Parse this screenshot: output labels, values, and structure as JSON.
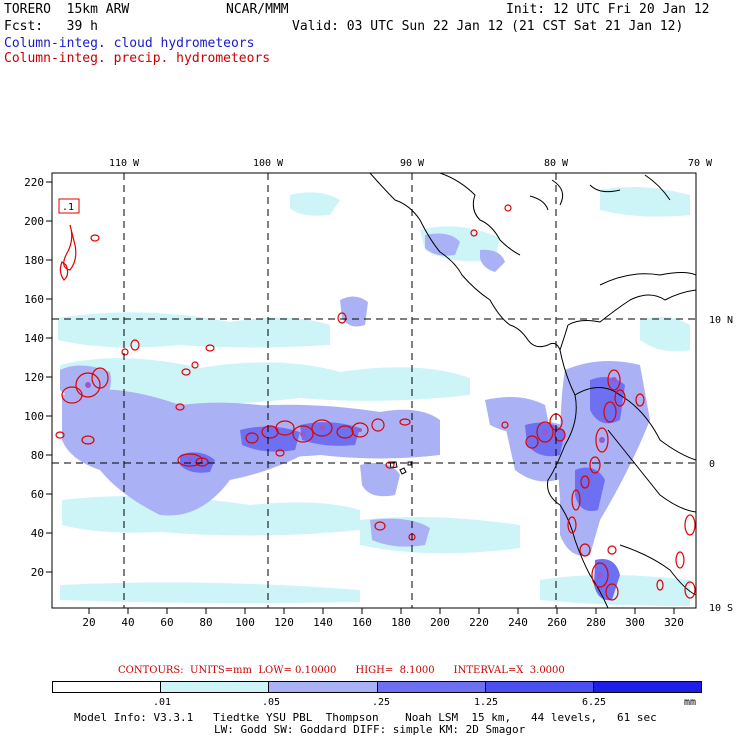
{
  "header": {
    "model": "TORERO  15km ARW",
    "org": "NCAR/MMM",
    "init": "Init: 12 UTC Fri 20 Jan 12",
    "fcst": "Fcst:   39 h",
    "valid": "Valid: 03 UTC Sun 22 Jan 12 (21 CST Sat 21 Jan 12)",
    "field1": "Column-integ. cloud hydrometeors",
    "field2": "Column-integ. precip. hydrometeors"
  },
  "map": {
    "top_lon_labels": [
      "110 W",
      "100 W",
      "90 W",
      "80 W",
      "70 W"
    ],
    "right_lat_labels": [
      "10 N",
      "0",
      "10 S"
    ],
    "left_ticks": [
      "220",
      "200",
      "180",
      "160",
      "140",
      "120",
      "100",
      "80",
      "60",
      "40",
      "20"
    ],
    "bottom_ticks": [
      "20",
      "40",
      "60",
      "80",
      "100",
      "120",
      "140",
      "160",
      "180",
      "200",
      "220",
      "240",
      "260",
      "280",
      "300",
      "320"
    ],
    "contour_box_label": ".1"
  },
  "contour_info": {
    "contours": "CONTOURS:",
    "units": "UNITS=mm",
    "low": "LOW= 0.10000",
    "high": "HIGH=  8.1000",
    "interval": "INTERVAL=X  3.0000"
  },
  "colorbar": {
    "labels": [
      ".01",
      ".05",
      ".25",
      "1.25",
      "6.25"
    ],
    "unit": "mm",
    "colors": [
      "#ffffff",
      "#cdf5f8",
      "#aab2f5",
      "#6e70f2",
      "#4b4ff0",
      "#1e1ee6"
    ]
  },
  "footer": {
    "line1": "Model Info: V3.3.1   Tiedtke YSU PBL  Thompson    Noah LSM  15 km,   44 levels,   61 sec",
    "line2": "LW: Godd SW: Goddard DIFF: simple KM: 2D Smagor"
  }
}
